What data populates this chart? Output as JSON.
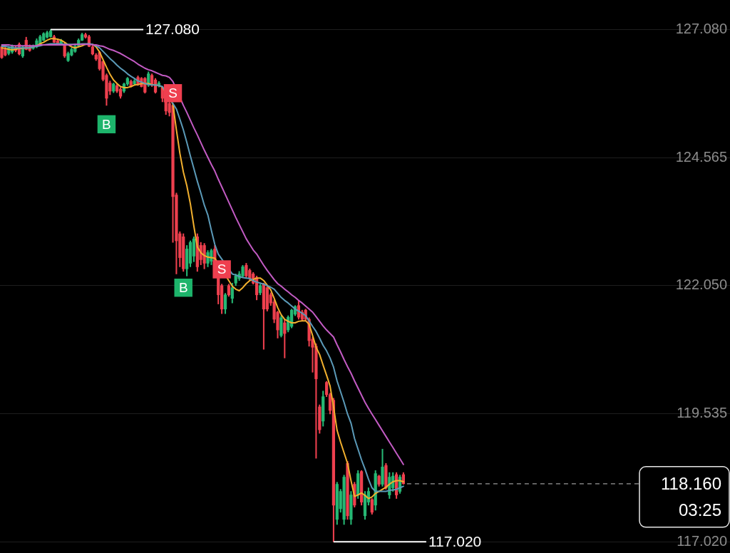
{
  "chart_data": {
    "type": "candlestick",
    "categories": [
      null,
      null,
      null,
      null,
      null,
      null,
      null,
      null,
      null,
      null,
      null,
      null,
      null,
      null,
      null,
      null,
      null,
      null,
      null,
      null,
      null,
      null,
      null,
      null,
      null,
      null,
      null,
      null,
      null,
      null,
      null,
      null,
      null,
      null,
      null,
      null,
      null,
      null,
      null,
      null,
      null,
      null,
      null,
      null,
      null,
      null,
      null,
      null,
      null,
      null,
      null,
      null,
      null,
      null,
      null,
      null,
      null,
      null,
      null,
      null,
      null,
      null,
      null,
      null,
      null,
      null,
      null,
      null,
      null,
      null,
      null,
      null,
      null,
      null,
      null,
      null,
      null,
      null,
      null,
      null,
      null,
      null,
      null,
      null,
      null,
      null,
      null,
      null,
      null,
      null,
      null,
      null,
      null,
      null,
      null,
      null,
      null,
      null,
      null,
      null,
      null,
      null,
      null,
      null,
      null,
      null,
      null,
      null,
      null,
      null,
      null,
      null,
      null,
      null,
      null,
      null,
      null,
      null,
      null,
      null,
      null,
      null,
      null,
      null,
      null,
      null,
      null,
      null,
      null,
      null,
      null,
      null,
      null,
      null,
      null,
      null,
      null,
      null,
      null,
      null,
      null,
      null,
      null,
      null,
      null,
      null,
      null,
      null,
      null,
      null,
      null,
      null,
      null,
      null,
      null,
      null,
      null,
      null,
      null,
      null,
      null,
      null,
      null,
      null,
      null,
      null,
      null,
      null,
      null,
      null,
      null,
      null,
      null,
      null,
      null,
      null,
      null,
      null,
      null,
      null,
      null,
      null,
      null,
      null,
      null,
      null,
      null,
      null,
      null,
      null,
      null,
      null,
      null,
      null,
      null,
      null,
      null,
      null,
      null,
      null,
      null,
      null,
      null,
      null,
      null,
      null,
      null,
      null,
      null
    ],
    "ohlc": [
      [
        126.74,
        126.76,
        126.51,
        126.53
      ],
      [
        126.69,
        126.75,
        126.56,
        126.58
      ],
      [
        126.61,
        126.75,
        126.58,
        126.72
      ],
      [
        126.64,
        126.78,
        126.61,
        126.75
      ],
      [
        126.72,
        126.75,
        126.64,
        126.67
      ],
      [
        126.79,
        126.82,
        126.58,
        126.6
      ],
      [
        126.56,
        126.76,
        126.53,
        126.74
      ],
      [
        126.87,
        126.93,
        126.68,
        126.69
      ],
      [
        126.75,
        126.78,
        126.65,
        126.67
      ],
      [
        126.71,
        126.78,
        126.69,
        126.75
      ],
      [
        126.74,
        126.9,
        126.72,
        126.86
      ],
      [
        126.79,
        126.97,
        126.78,
        126.94
      ],
      [
        126.87,
        127.02,
        126.86,
        127.0
      ],
      [
        126.93,
        127.05,
        126.91,
        127.02
      ],
      [
        126.94,
        127.08,
        126.93,
        127.05
      ],
      [
        126.94,
        126.97,
        126.82,
        126.83
      ],
      [
        126.86,
        126.89,
        126.79,
        126.8
      ],
      [
        126.8,
        126.89,
        126.78,
        126.86
      ],
      [
        126.8,
        126.83,
        126.53,
        126.56
      ],
      [
        126.47,
        126.64,
        126.45,
        126.61
      ],
      [
        126.58,
        126.72,
        126.56,
        126.69
      ],
      [
        126.65,
        126.78,
        126.63,
        126.75
      ],
      [
        126.76,
        126.9,
        126.74,
        126.87
      ],
      [
        126.87,
        127.01,
        126.86,
        126.98
      ],
      [
        126.98,
        127.01,
        126.91,
        126.93
      ],
      [
        126.94,
        126.97,
        126.74,
        126.75
      ],
      [
        126.74,
        126.76,
        126.58,
        126.6
      ],
      [
        126.58,
        126.61,
        126.47,
        126.5
      ],
      [
        126.63,
        126.65,
        126.28,
        126.31
      ],
      [
        126.45,
        126.47,
        126.07,
        126.1
      ],
      [
        126.18,
        126.21,
        125.59,
        125.73
      ],
      [
        126.03,
        126.07,
        125.8,
        125.87
      ],
      [
        125.87,
        126.03,
        125.84,
        126.01
      ],
      [
        125.98,
        126.01,
        125.84,
        125.87
      ],
      [
        125.91,
        125.94,
        125.73,
        125.77
      ],
      [
        125.87,
        126.03,
        125.84,
        126.01
      ],
      [
        126.01,
        126.14,
        125.98,
        126.12
      ],
      [
        126.06,
        126.09,
        125.95,
        125.96
      ],
      [
        126.01,
        126.1,
        125.99,
        126.07
      ],
      [
        126.14,
        126.17,
        125.98,
        126.01
      ],
      [
        126.12,
        126.14,
        125.95,
        125.96
      ],
      [
        126.12,
        126.14,
        125.83,
        125.85
      ],
      [
        125.99,
        126.25,
        125.96,
        126.21
      ],
      [
        126.18,
        126.21,
        125.96,
        125.99
      ],
      [
        126.09,
        126.12,
        125.83,
        125.85
      ],
      [
        125.98,
        126.06,
        125.95,
        126.03
      ],
      [
        125.94,
        125.96,
        125.66,
        125.73
      ],
      [
        125.8,
        125.83,
        125.41,
        125.48
      ],
      [
        125.63,
        125.66,
        125.38,
        125.45
      ],
      [
        125.59,
        125.62,
        122.9,
        123.8
      ],
      [
        123.83,
        123.87,
        122.28,
        122.93
      ],
      [
        123.07,
        123.11,
        122.42,
        122.6
      ],
      [
        123.01,
        123.07,
        122.33,
        122.38
      ],
      [
        122.38,
        122.84,
        122.24,
        122.77
      ],
      [
        122.49,
        122.93,
        122.42,
        122.9
      ],
      [
        122.63,
        123.01,
        122.52,
        122.97
      ],
      [
        123.01,
        123.07,
        122.33,
        122.42
      ],
      [
        122.84,
        122.9,
        122.46,
        122.56
      ],
      [
        122.84,
        122.88,
        122.38,
        122.49
      ],
      [
        122.49,
        122.74,
        122.42,
        122.7
      ],
      [
        122.53,
        122.77,
        122.46,
        122.74
      ],
      [
        122.77,
        122.84,
        122.42,
        122.49
      ],
      [
        122.28,
        122.31,
        121.69,
        121.87
      ],
      [
        122.05,
        122.08,
        121.5,
        121.59
      ],
      [
        121.59,
        121.9,
        121.5,
        121.87
      ],
      [
        122.05,
        122.08,
        121.84,
        121.87
      ],
      [
        121.8,
        122.1,
        121.71,
        122.01
      ],
      [
        122.1,
        122.28,
        122.05,
        122.24
      ],
      [
        122.19,
        122.33,
        122.15,
        122.28
      ],
      [
        122.24,
        122.45,
        122.21,
        122.42
      ],
      [
        122.45,
        122.49,
        122.21,
        122.24
      ],
      [
        122.35,
        122.38,
        122.15,
        122.19
      ],
      [
        122.28,
        122.31,
        122.08,
        122.1
      ],
      [
        122.21,
        122.24,
        121.77,
        121.87
      ],
      [
        121.91,
        122.08,
        121.87,
        122.05
      ],
      [
        122.08,
        122.1,
        120.8,
        121.59
      ],
      [
        122.01,
        122.04,
        121.55,
        121.59
      ],
      [
        121.87,
        121.91,
        121.66,
        121.71
      ],
      [
        121.73,
        121.77,
        121.32,
        121.39
      ],
      [
        121.53,
        121.55,
        121.02,
        121.18
      ],
      [
        121.07,
        121.46,
        121.04,
        121.42
      ],
      [
        121.32,
        121.39,
        120.63,
        121.11
      ],
      [
        121.18,
        121.46,
        121.14,
        121.43
      ],
      [
        121.25,
        121.59,
        121.22,
        121.57
      ],
      [
        121.49,
        121.66,
        121.46,
        121.64
      ],
      [
        121.66,
        121.76,
        121.39,
        121.43
      ],
      [
        121.53,
        121.57,
        121.36,
        121.39
      ],
      [
        121.57,
        121.59,
        121.36,
        121.39
      ],
      [
        121.39,
        121.42,
        120.86,
        120.97
      ],
      [
        121.0,
        121.04,
        120.35,
        120.84
      ],
      [
        120.86,
        120.91,
        118.66,
        120.22
      ],
      [
        119.67,
        119.71,
        119.15,
        119.22
      ],
      [
        119.39,
        119.98,
        119.29,
        119.87
      ],
      [
        120.15,
        120.17,
        119.87,
        119.91
      ],
      [
        119.91,
        119.94,
        119.53,
        119.6
      ],
      [
        119.8,
        119.84,
        117.02,
        117.74
      ],
      [
        117.46,
        118.19,
        117.36,
        118.15
      ],
      [
        117.67,
        118.05,
        117.6,
        118.01
      ],
      [
        117.46,
        118.33,
        117.36,
        118.29
      ],
      [
        118.56,
        118.6,
        117.46,
        117.53
      ],
      [
        117.46,
        118.01,
        117.36,
        117.94
      ],
      [
        118.15,
        118.19,
        117.7,
        117.74
      ],
      [
        117.94,
        118.42,
        117.87,
        118.36
      ],
      [
        118.4,
        118.42,
        117.74,
        117.8
      ],
      [
        117.53,
        118.01,
        117.46,
        117.94
      ],
      [
        117.8,
        118.08,
        117.74,
        118.01
      ],
      [
        117.85,
        117.87,
        117.56,
        117.6
      ],
      [
        117.74,
        118.42,
        117.64,
        118.36
      ],
      [
        118.31,
        118.33,
        118.11,
        118.15
      ],
      [
        118.15,
        118.84,
        118.11,
        118.49
      ],
      [
        118.52,
        118.56,
        118.05,
        118.08
      ],
      [
        117.94,
        118.38,
        117.87,
        118.29
      ],
      [
        118.08,
        118.38,
        118.01,
        118.31
      ],
      [
        118.34,
        118.38,
        117.87,
        117.94
      ],
      [
        118.01,
        118.33,
        117.97,
        118.29
      ],
      [
        118.34,
        118.38,
        118.15,
        118.16
      ],
      null,
      null,
      null,
      null,
      null,
      null,
      null,
      null,
      null,
      null,
      null,
      null,
      null,
      null,
      null,
      null,
      null,
      null,
      null,
      null,
      null,
      null,
      null,
      null,
      null,
      null,
      null,
      null,
      null,
      null,
      null,
      null,
      null,
      null,
      null,
      null,
      null,
      null,
      null,
      null,
      null,
      null,
      null,
      null,
      null,
      null,
      null,
      null,
      null,
      null,
      null,
      null,
      null,
      null,
      null,
      null,
      null,
      null,
      null,
      null,
      null,
      null,
      null,
      null,
      null,
      null,
      null,
      null,
      null,
      null,
      null,
      null,
      null,
      null,
      null,
      null,
      null,
      null,
      null,
      null,
      null,
      null,
      null,
      null,
      null,
      null,
      null,
      null,
      null,
      null,
      null,
      null,
      null
    ],
    "colors": [
      "#ee404e",
      "#ee404e",
      "#26b874",
      "#26b874",
      "#ee404e",
      "#ee404e",
      "#26b874",
      "#ee404e",
      "#ee404e",
      "#26b874",
      "#26b874",
      "#26b874",
      "#26b874",
      "#26b874",
      "#26b874",
      "#ee404e",
      "#ee404e",
      "#26b874",
      "#ee404e",
      "#26b874",
      "#26b874",
      "#26b874",
      "#26b874",
      "#26b874",
      "#ee404e",
      "#ee404e",
      "#ee404e",
      "#ee404e",
      "#ee404e",
      "#ee404e",
      "#ee404e",
      "#ee404e",
      "#26b874",
      "#ee404e",
      "#ee404e",
      "#26b874",
      "#26b874",
      "#ee404e",
      "#26b874",
      "#ee404e",
      "#ee404e",
      "#ee404e",
      "#26b874",
      "#ee404e",
      "#ee404e",
      "#26b874",
      "#ee404e",
      "#ee404e",
      "#ee404e",
      "#ee404e",
      "#ee404e",
      "#ee404e",
      "#ee404e",
      "#26b874",
      "#26b874",
      "#26b874",
      "#ee404e",
      "#ee404e",
      "#ee404e",
      "#26b874",
      "#26b874",
      "#ee404e",
      "#ee404e",
      "#ee404e",
      "#26b874",
      "#ee404e",
      "#26b874",
      "#26b874",
      "#26b874",
      "#26b874",
      "#ee404e",
      "#ee404e",
      "#ee404e",
      "#ee404e",
      "#26b874",
      "#ee404e",
      "#ee404e",
      "#ee404e",
      "#ee404e",
      "#ee404e",
      "#26b874",
      "#ee404e",
      "#26b874",
      "#26b874",
      "#26b874",
      "#ee404e",
      "#ee404e",
      "#ee404e",
      "#ee404e",
      "#ee404e",
      "#ee404e",
      "#ee404e",
      "#26b874",
      "#ee404e",
      "#ee404e",
      "#ee404e",
      "#26b874",
      "#26b874",
      "#26b874",
      "#ee404e",
      "#26b874",
      "#ee404e",
      "#26b874",
      "#ee404e",
      "#26b874",
      "#26b874",
      "#ee404e",
      "#26b874",
      "#ee404e",
      "#26b874",
      "#ee404e",
      "#26b874",
      "#26b874",
      "#ee404e",
      "#26b874",
      "#ee404e",
      null,
      null,
      null,
      null,
      null,
      null,
      null,
      null,
      null,
      null,
      null,
      null,
      null,
      null,
      null,
      null,
      null,
      null,
      null,
      null,
      null,
      null,
      null,
      null,
      null,
      null,
      null,
      null,
      null,
      null,
      null,
      null,
      null,
      null,
      null,
      null,
      null,
      null,
      null,
      null,
      null,
      null,
      null,
      null,
      null,
      null,
      null,
      null,
      null,
      null,
      null,
      null,
      null,
      null,
      null,
      null,
      null,
      null,
      null,
      null,
      null,
      null,
      null,
      null,
      null,
      null,
      null,
      null,
      null,
      null,
      null,
      null,
      null,
      null,
      null,
      null,
      null,
      null,
      null,
      null,
      null,
      null,
      null,
      null,
      null,
      null,
      null,
      null,
      null,
      null,
      null,
      null,
      null
    ],
    "series": [
      {
        "type": "line",
        "color": "#c35bc4",
        "values": [
          126.78,
          126.78,
          126.78,
          126.76,
          126.76,
          126.76,
          126.76,
          126.76,
          126.76,
          126.76,
          126.76,
          126.78,
          126.78,
          126.78,
          126.78,
          126.78,
          126.78,
          126.78,
          126.78,
          126.78,
          126.78,
          126.79,
          126.79,
          126.79,
          126.79,
          126.79,
          126.78,
          126.78,
          126.76,
          126.75,
          126.72,
          126.69,
          126.67,
          126.64,
          126.61,
          126.57,
          126.53,
          126.49,
          126.45,
          126.4,
          126.36,
          126.32,
          126.29,
          126.27,
          126.24,
          126.21,
          126.18,
          126.17,
          126.14,
          126.06,
          null,
          null,
          125.59,
          125.45,
          125.3,
          125.15,
          125.01,
          124.86,
          124.71,
          124.57,
          124.43,
          124.3,
          124.14,
          123.99,
          123.84,
          123.69,
          123.54,
          123.39,
          123.25,
          123.11,
          122.97,
          122.86,
          122.75,
          122.67,
          122.56,
          122.45,
          122.35,
          122.26,
          122.17,
          122.09,
          122.04,
          121.98,
          121.93,
          121.87,
          121.82,
          121.76,
          121.71,
          121.65,
          121.59,
          121.53,
          121.44,
          121.35,
          121.26,
          121.18,
          121.11,
          121.04,
          120.89,
          120.75,
          120.6,
          120.46,
          120.33,
          120.18,
          120.04,
          119.9,
          119.76,
          119.64,
          119.53,
          119.42,
          119.31,
          119.2,
          119.09,
          118.98,
          118.87,
          118.76,
          118.65,
          118.54,
          null,
          null,
          null,
          null,
          null,
          null,
          null,
          null,
          null,
          null,
          null,
          null,
          null,
          null,
          null,
          null,
          null,
          null,
          null,
          null,
          null,
          null,
          null,
          null,
          null,
          null,
          null,
          null,
          null,
          null,
          null,
          null,
          null,
          null,
          null,
          null,
          null,
          null,
          null,
          null,
          null,
          null,
          null,
          null,
          null,
          null,
          null,
          null,
          null,
          null,
          null,
          null,
          null,
          null,
          null,
          null,
          null,
          null,
          null,
          null,
          null,
          null,
          null,
          null,
          null,
          null,
          null,
          null,
          null,
          null,
          null,
          null,
          null,
          null,
          null,
          null,
          null,
          null,
          null,
          null,
          null,
          null,
          null,
          null,
          null,
          null,
          null,
          null,
          null,
          null,
          null,
          null,
          null
        ]
      },
      {
        "type": "line",
        "color": "#5b9ab8",
        "values": [
          126.75,
          126.75,
          126.74,
          126.72,
          126.72,
          126.72,
          126.72,
          126.72,
          126.72,
          126.74,
          126.75,
          126.76,
          126.78,
          126.79,
          126.8,
          126.8,
          126.8,
          126.8,
          126.79,
          126.79,
          126.79,
          126.79,
          126.79,
          126.8,
          126.8,
          126.8,
          126.79,
          126.76,
          126.72,
          126.65,
          126.58,
          126.51,
          126.45,
          126.38,
          126.32,
          126.27,
          126.21,
          126.16,
          126.12,
          126.07,
          126.05,
          126.02,
          126.0,
          125.99,
          125.99,
          125.98,
          125.96,
          null,
          null,
          null,
          125.52,
          125.32,
          125.11,
          124.86,
          124.6,
          124.35,
          124.1,
          123.87,
          123.63,
          123.44,
          123.14,
          122.86,
          122.67,
          null,
          null,
          null,
          122.28,
          122.26,
          122.23,
          122.21,
          122.2,
          122.19,
          122.15,
          122.12,
          122.1,
          122.08,
          122.05,
          122.02,
          121.98,
          121.9,
          121.82,
          121.76,
          121.71,
          121.65,
          121.59,
          121.55,
          121.51,
          121.46,
          121.36,
          121.25,
          121.15,
          121.02,
          120.88,
          120.77,
          120.63,
          120.45,
          120.18,
          119.97,
          119.76,
          119.53,
          119.35,
          119.05,
          118.84,
          118.63,
          118.45,
          118.25,
          118.08,
          118.01,
          118.01,
          118.01,
          118.01,
          118.03,
          118.04,
          118.05,
          118.08,
          118.11,
          null,
          null,
          null,
          null,
          null,
          null,
          null,
          null,
          null,
          null,
          null,
          null,
          null,
          null,
          null,
          null,
          null,
          null,
          null,
          null,
          null,
          null,
          null,
          null,
          null,
          null,
          null,
          null,
          null,
          null,
          null,
          null,
          null,
          null,
          null,
          null,
          null,
          null,
          null,
          null,
          null,
          null,
          null,
          null,
          null,
          null,
          null,
          null,
          null,
          null,
          null,
          null,
          null,
          null,
          null,
          null,
          null,
          null,
          null,
          null,
          null,
          null,
          null,
          null,
          null,
          null,
          null,
          null,
          null,
          null,
          null,
          null,
          null,
          null,
          null,
          null,
          null,
          null,
          null,
          null,
          null,
          null,
          null,
          null,
          null,
          null,
          null,
          null,
          null,
          null,
          null,
          null,
          null
        ]
      },
      {
        "type": "line",
        "color": "#f2b02e",
        "values": [
          126.72,
          126.71,
          126.69,
          126.68,
          126.69,
          126.71,
          126.71,
          126.72,
          126.72,
          126.74,
          126.76,
          126.8,
          126.83,
          126.87,
          126.9,
          126.9,
          126.89,
          126.87,
          126.83,
          126.78,
          126.74,
          126.72,
          126.74,
          126.76,
          126.79,
          126.8,
          126.79,
          126.74,
          126.64,
          126.49,
          126.34,
          126.2,
          126.09,
          126.02,
          125.96,
          125.94,
          125.94,
          125.96,
          125.99,
          126.0,
          126.02,
          126.02,
          126.02,
          126.0,
          125.99,
          125.98,
          125.95,
          null,
          null,
          125.62,
          125.11,
          124.65,
          124.28,
          124.01,
          123.66,
          123.22,
          122.81,
          122.7,
          122.64,
          122.61,
          122.6,
          122.59,
          null,
          null,
          null,
          122.15,
          122.04,
          121.98,
          121.95,
          122.01,
          122.09,
          122.15,
          122.17,
          122.2,
          122.2,
          122.15,
          122.06,
          121.97,
          121.8,
          121.62,
          121.48,
          121.39,
          121.35,
          121.32,
          121.32,
          121.35,
          121.36,
          121.36,
          121.29,
          121.07,
          120.84,
          120.7,
          120.49,
          120.29,
          120.08,
          119.67,
          119.21,
          118.98,
          118.77,
          118.56,
          118.22,
          117.91,
          117.94,
          117.98,
          117.93,
          117.87,
          117.9,
          117.97,
          118.01,
          118.05,
          118.09,
          118.15,
          118.2,
          118.22,
          118.22,
          118.2,
          null,
          null,
          null,
          null,
          null,
          null,
          null,
          null,
          null,
          null,
          null,
          null,
          null,
          null,
          null,
          null,
          null,
          null,
          null,
          null,
          null,
          null,
          null,
          null,
          null,
          null,
          null,
          null,
          null,
          null,
          null,
          null,
          null,
          null,
          null,
          null,
          null,
          null,
          null,
          null,
          null,
          null,
          null,
          null,
          null,
          null,
          null,
          null,
          null,
          null,
          null,
          null,
          null,
          null,
          null,
          null,
          null,
          null,
          null,
          null,
          null,
          null,
          null,
          null,
          null,
          null,
          null,
          null,
          null,
          null,
          null,
          null,
          null,
          null,
          null,
          null,
          null,
          null,
          null,
          null,
          null,
          null,
          null,
          null,
          null,
          null,
          null,
          null,
          null,
          null,
          null,
          null,
          null
        ]
      },
      {
        "type": "scatter",
        "name": "B",
        "color": "#1db46b",
        "marker": "square",
        "values": [
          null,
          null,
          null,
          null,
          null,
          null,
          null,
          null,
          null,
          null,
          null,
          null,
          null,
          null,
          null,
          null,
          null,
          null,
          null,
          null,
          null,
          null,
          null,
          null,
          null,
          null,
          null,
          null,
          null,
          null,
          125.22,
          null,
          null,
          null,
          null,
          null,
          null,
          null,
          null,
          null,
          null,
          null,
          null,
          null,
          null,
          null,
          null,
          null,
          null,
          null,
          null,
          null,
          122.01,
          null,
          null,
          null,
          null,
          null,
          null,
          null,
          null,
          null,
          null,
          null,
          null,
          null,
          null,
          null,
          null,
          null,
          null,
          null,
          null,
          null,
          null,
          null,
          null,
          null,
          null,
          null,
          null,
          null,
          null,
          null,
          null,
          null,
          null,
          null,
          null,
          null,
          null,
          null,
          null,
          null,
          null,
          null,
          null,
          null,
          null,
          null,
          null,
          null,
          null,
          null,
          null,
          null,
          null,
          null,
          null,
          null,
          null,
          null,
          null,
          null,
          null,
          null,
          null,
          null,
          null,
          null,
          null,
          null,
          null,
          null,
          null,
          null,
          null,
          null,
          null,
          null,
          null,
          null,
          null,
          null,
          null,
          null,
          null,
          null,
          null,
          null,
          null,
          null,
          null,
          null,
          null,
          null,
          null,
          null,
          null,
          null,
          null,
          null,
          null,
          null,
          null,
          null,
          null,
          null,
          null,
          null,
          null,
          null,
          null,
          null,
          null,
          null,
          null,
          null,
          null,
          null,
          null,
          null,
          null,
          null,
          null,
          null,
          null,
          null,
          null,
          null,
          null,
          null,
          null,
          null,
          null,
          null,
          null,
          null,
          null,
          null,
          null,
          null,
          null,
          null,
          null,
          null,
          null,
          null,
          null,
          null,
          null,
          null,
          null,
          null,
          null,
          null,
          null,
          null,
          null
        ]
      },
      {
        "type": "scatter",
        "name": "S",
        "color": "#ef3f4f",
        "marker": "square",
        "values": [
          null,
          null,
          null,
          null,
          null,
          null,
          null,
          null,
          null,
          null,
          null,
          null,
          null,
          null,
          null,
          null,
          null,
          null,
          null,
          null,
          null,
          null,
          null,
          null,
          null,
          null,
          null,
          null,
          null,
          null,
          null,
          null,
          null,
          null,
          null,
          null,
          null,
          null,
          null,
          null,
          null,
          null,
          null,
          null,
          null,
          null,
          null,
          null,
          null,
          125.83,
          null,
          null,
          null,
          null,
          null,
          null,
          null,
          null,
          null,
          null,
          null,
          null,
          null,
          122.37,
          null,
          null,
          null,
          null,
          null,
          null,
          null,
          null,
          null,
          null,
          null,
          null,
          null,
          null,
          null,
          null,
          null,
          null,
          null,
          null,
          null,
          null,
          null,
          null,
          null,
          null,
          null,
          null,
          null,
          null,
          null,
          null,
          null,
          null,
          null,
          null,
          null,
          null,
          null,
          null,
          null,
          null,
          null,
          null,
          null,
          null,
          null,
          null,
          null,
          null,
          null,
          null,
          null,
          null,
          null,
          null,
          null,
          null,
          null,
          null,
          null,
          null,
          null,
          null,
          null,
          null,
          null,
          null,
          null,
          null,
          null,
          null,
          null,
          null,
          null,
          null,
          null,
          null,
          null,
          null,
          null,
          null,
          null,
          null,
          null,
          null,
          null,
          null,
          null,
          null,
          null,
          null,
          null,
          null,
          null,
          null,
          null,
          null,
          null,
          null,
          null,
          null,
          null,
          null,
          null,
          null,
          null,
          null,
          null,
          null,
          null,
          null,
          null,
          null,
          null,
          null,
          null,
          null,
          null,
          null,
          null,
          null,
          null,
          null,
          null,
          null,
          null,
          null,
          null,
          null,
          null,
          null,
          null,
          null,
          null,
          null,
          null,
          null,
          null,
          null,
          null,
          null,
          null,
          null,
          null
        ]
      }
    ],
    "ylim": [
      116.8,
      127.66
    ],
    "yticks": [
      {
        "value": 117.02,
        "label": "117.020"
      },
      119.535,
      {
        "value": 122.05,
        "label": "122.050"
      },
      124.565,
      {
        "value": 127.08,
        "label": "127.080"
      }
    ],
    "tick_labels": "y",
    "grid": "y",
    "annotations": [
      "127.080",
      "117.020"
    ],
    "ref_lines": [
      {
        "axis": "y",
        "value": 118.16,
        "label": "118.160\n03:25",
        "color": "#9a9a9a",
        "line_style": "dashed"
      }
    ]
  }
}
